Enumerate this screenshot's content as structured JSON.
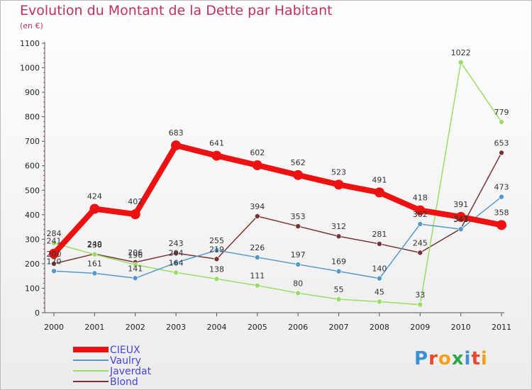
{
  "title": "Evolution du Montant de la Dette par Habitant",
  "unit": "(en €)",
  "logo": {
    "letters": [
      "P",
      "r",
      "o",
      "x",
      "i",
      "t",
      "i"
    ],
    "colors": [
      "#3b8fd6",
      "#e8482e",
      "#f2a21a",
      "#2fa74a",
      "#3b8fd6",
      "#e8482e",
      "#f2a21a"
    ]
  },
  "chart_data": {
    "type": "line",
    "categories": [
      "2000",
      "2001",
      "2002",
      "2003",
      "2004",
      "2005",
      "2006",
      "2007",
      "2008",
      "2009",
      "2010",
      "2011"
    ],
    "ylim": [
      0,
      1100
    ],
    "yticks": [
      0,
      100,
      200,
      300,
      400,
      500,
      600,
      700,
      800,
      900,
      1000,
      1100
    ],
    "grid": false,
    "legend_position": "bottom-left",
    "series": [
      {
        "name": "CIEUX",
        "color": "#ee1111",
        "values": [
          241,
          424,
          402,
          683,
          641,
          602,
          562,
          523,
          491,
          418,
          391,
          358
        ],
        "labels": [
          "241",
          "424",
          "402",
          "683",
          "641",
          "602",
          "562",
          "523",
          "491",
          "418",
          "391",
          "358"
        ],
        "width": 8,
        "marker": 7
      },
      {
        "name": "Vaulry",
        "color": "#5599cc",
        "values": [
          170,
          161,
          141,
          204,
          255,
          226,
          197,
          169,
          140,
          362,
          341,
          473
        ],
        "labels": [
          "170",
          "161",
          "141",
          "204",
          "255",
          "226",
          "197",
          "169",
          "140",
          "362",
          "341",
          "473"
        ],
        "width": 1.5,
        "marker": 3.5
      },
      {
        "name": "Javerdat",
        "color": "#99dd66",
        "values": [
          284,
          238,
          196,
          164,
          138,
          111,
          80,
          55,
          45,
          33,
          1022,
          779
        ],
        "labels": [
          "284",
          "238",
          "196",
          "164",
          "138",
          "111",
          "80",
          "55",
          "45",
          "33",
          "1022",
          "779"
        ],
        "width": 1.5,
        "marker": 3.5
      },
      {
        "name": "Blond",
        "color": "#773333",
        "values": [
          200,
          240,
          206,
          243,
          219,
          394,
          353,
          312,
          281,
          245,
          343,
          653
        ],
        "labels": [
          "200",
          "240",
          "206",
          "243",
          "219",
          "394",
          "353",
          "312",
          "281",
          "245",
          "343",
          "653"
        ],
        "width": 1.5,
        "marker": 3.5
      }
    ]
  }
}
